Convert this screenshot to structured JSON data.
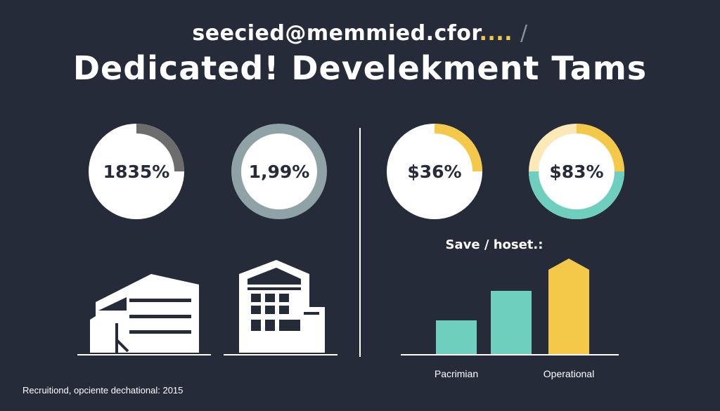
{
  "header": {
    "subtitle_text": "seecied@memmied.cfor",
    "subtitle_dots": "....",
    "subtitle_slash": "/",
    "title": "Dedicated! Develekment Tams"
  },
  "footer": {
    "text": "Recruitiond, opciente dechational: 2015"
  },
  "chart_data": [
    {
      "type": "pie",
      "subtype": "donut",
      "charts": [
        {
          "center_label": "1835%",
          "ring_color": "#ffffff",
          "fill_color": "#ffffff",
          "accent_color": "#6d6d6d",
          "accent_fraction": 0.25
        },
        {
          "center_label": "1,99%",
          "ring_color": "#8fa3a6",
          "fill_color": "#ffffff",
          "accent_color": null,
          "accent_fraction": 0
        },
        {
          "center_label": "$36%",
          "ring_color": "#ffffff",
          "fill_color": "#ffffff",
          "accent_color": "#f4c94a",
          "accent_fraction": 0.25
        },
        {
          "center_label": "$83%",
          "ring_color": "#fbe9b7",
          "fill_color": "#ffffff",
          "accent_color": "#f4c94a",
          "accent_fraction": 0.25,
          "bottom_color": "#6fcfbf",
          "bottom_fraction": 0.5
        }
      ]
    },
    {
      "type": "bar",
      "title": "Save / hoset.:",
      "categories": [
        "Pacrimian",
        "",
        "Operational"
      ],
      "values": [
        48,
        90,
        128
      ],
      "colors": [
        "#6fcfbf",
        "#6fcfbf",
        "#f4c94a"
      ],
      "ylim": [
        0,
        135
      ],
      "grid": false,
      "axis": "baseline-only"
    }
  ]
}
